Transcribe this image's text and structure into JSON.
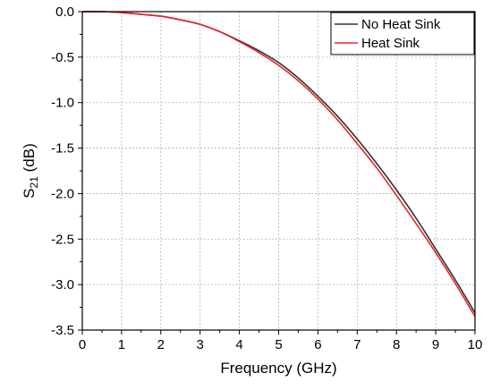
{
  "chart_data": {
    "type": "line",
    "title": "",
    "xlabel": "Frequency (GHz)",
    "ylabel_main": "S",
    "ylabel_sub": "21",
    "ylabel_unit": " (dB)",
    "xlim": [
      0,
      10
    ],
    "ylim": [
      -3.5,
      0.0
    ],
    "xticks": [
      0,
      1,
      2,
      3,
      4,
      5,
      6,
      7,
      8,
      9,
      10
    ],
    "yticks": [
      0.0,
      -0.5,
      -1.0,
      -1.5,
      -2.0,
      -2.5,
      -3.0,
      -3.5
    ],
    "xtick_labels": [
      "0",
      "1",
      "2",
      "3",
      "4",
      "5",
      "6",
      "7",
      "8",
      "9",
      "10"
    ],
    "ytick_labels": [
      "0.0",
      "-0.5",
      "-1.0",
      "-1.5",
      "-2.0",
      "-2.5",
      "-3.0",
      "-3.5"
    ],
    "grid": true,
    "legend_position": "top-right",
    "x": [
      0,
      0.5,
      1,
      1.5,
      2,
      2.5,
      3,
      3.5,
      4,
      4.5,
      5,
      5.5,
      6,
      6.5,
      7,
      7.5,
      8,
      8.5,
      9,
      9.5,
      10
    ],
    "series": [
      {
        "name": "No Heat Sink",
        "color": "#333333",
        "values": [
          0.0,
          0.0,
          -0.01,
          -0.03,
          -0.05,
          -0.09,
          -0.14,
          -0.22,
          -0.32,
          -0.43,
          -0.56,
          -0.73,
          -0.93,
          -1.15,
          -1.4,
          -1.67,
          -1.96,
          -2.27,
          -2.61,
          -2.95,
          -3.31
        ]
      },
      {
        "name": "Heat Sink",
        "color": "#e8262b",
        "values": [
          0.0,
          0.0,
          -0.01,
          -0.03,
          -0.05,
          -0.09,
          -0.14,
          -0.22,
          -0.33,
          -0.45,
          -0.59,
          -0.76,
          -0.96,
          -1.19,
          -1.45,
          -1.72,
          -2.02,
          -2.33,
          -2.65,
          -2.99,
          -3.35
        ]
      }
    ]
  }
}
